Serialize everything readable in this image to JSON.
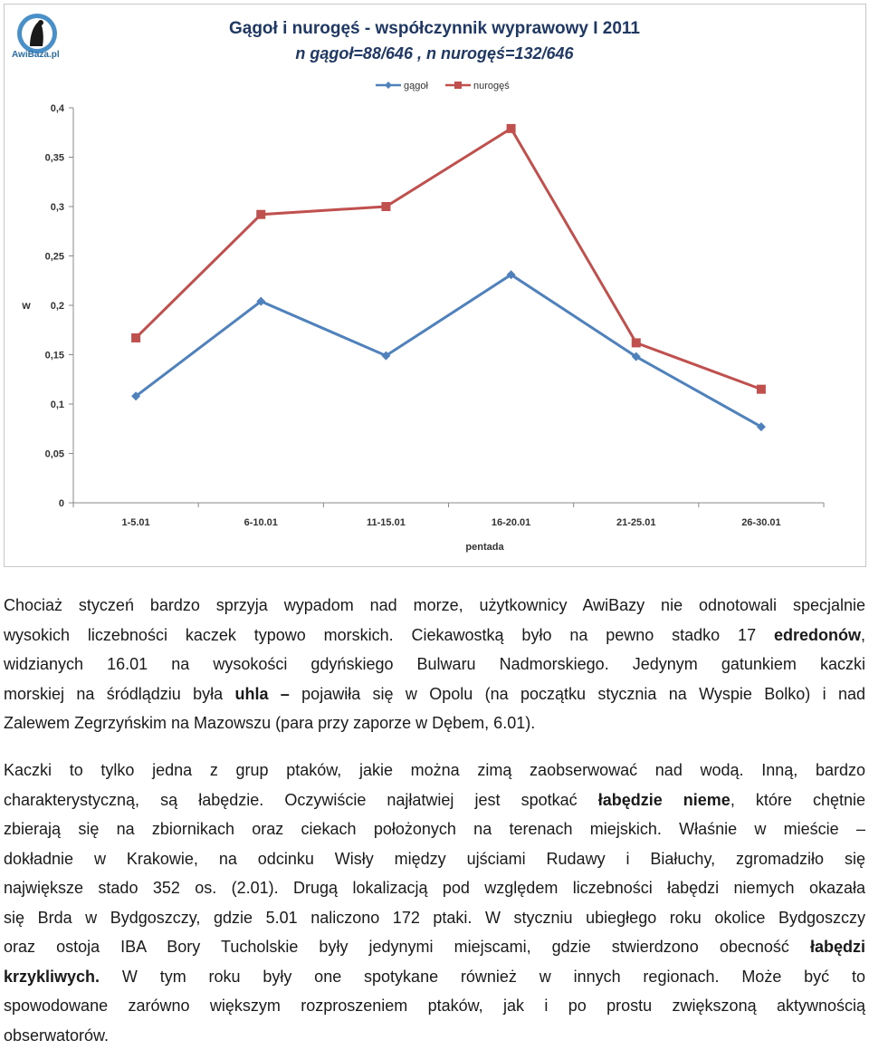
{
  "logo": {
    "text": "AwiBaza.pl"
  },
  "chart_data": {
    "type": "line",
    "title": "Gągoł i nurogęś - współczynnik wyprawowy I 2011",
    "subtitle": "n gągoł=88/646 , n nurogęś=132/646",
    "xlabel": "pentada",
    "ylabel": "w",
    "categories": [
      "1-5.01",
      "6-10.01",
      "11-15.01",
      "16-20.01",
      "21-25.01",
      "26-30.01"
    ],
    "ylim": [
      0,
      0.4
    ],
    "yticks": [
      "0",
      "0,05",
      "0,1",
      "0,15",
      "0,2",
      "0,25",
      "0,3",
      "0,35",
      "0,4"
    ],
    "legend_position": "top",
    "grid": false,
    "series": [
      {
        "name": "gągoł",
        "color": "#4f81bd",
        "marker": "diamond",
        "values": [
          0.108,
          0.204,
          0.149,
          0.231,
          0.148,
          0.077
        ]
      },
      {
        "name": "nurogęś",
        "color": "#c0504d",
        "marker": "square",
        "values": [
          0.167,
          0.292,
          0.3,
          0.379,
          0.162,
          0.115
        ]
      }
    ]
  },
  "para1": [
    [
      {
        "t": "Chociaż styczeń bardzo sprzyja wypadom nad morze, użytkownicy AwiBazy nie odnotowali specjalnie"
      }
    ],
    [
      {
        "t": "wysokich liczebności kaczek typowo morskich. Ciekawostką było na pewno stadko 17 "
      },
      {
        "t": "edredonów",
        "b": true
      },
      {
        "t": ","
      }
    ],
    [
      {
        "t": "widzianych 16.01 na wysokości gdyńskiego Bulwaru Nadmorskiego. Jedynym gatunkiem kaczki"
      }
    ],
    [
      {
        "t": "morskiej na śródlądziu była "
      },
      {
        "t": "uhla – ",
        "b": true
      },
      {
        "t": "pojawiła się w Opolu (na początku stycznia na Wyspie Bolko) i nad"
      }
    ],
    [
      {
        "t": "Zalewem Zegrzyńskim na Mazowszu (para przy zaporze w Dębem, 6.01)."
      }
    ]
  ],
  "para2": [
    [
      {
        "t": "Kaczki to tylko jedna z grup ptaków, jakie można zimą zaobserwować nad wodą. Inną, bardzo"
      }
    ],
    [
      {
        "t": "charakterystyczną, są łabędzie. Oczywiście najłatwiej jest spotkać "
      },
      {
        "t": "łabędzie nieme",
        "b": true
      },
      {
        "t": ", które chętnie"
      }
    ],
    [
      {
        "t": "zbierają się na zbiornikach oraz ciekach położonych na terenach miejskich. Właśnie w mieście –"
      }
    ],
    [
      {
        "t": "dokładnie w Krakowie, na odcinku Wisły między ujściami Rudawy i Białuchy, zgromadziło się"
      }
    ],
    [
      {
        "t": "największe stado 352 os. (2.01). Drugą lokalizacją pod względem liczebności łabędzi niemych okazała"
      }
    ],
    [
      {
        "t": "się Brda w Bydgoszczy, gdzie 5.01 naliczono 172 ptaki. W styczniu ubiegłego roku okolice Bydgoszczy"
      }
    ],
    [
      {
        "t": "oraz ostoja IBA Bory Tucholskie były jedynymi miejscami, gdzie stwierdzono obecność "
      },
      {
        "t": "łabędzi",
        "b": true
      }
    ],
    [
      {
        "t": "krzykliwych.",
        "b": true
      },
      {
        "t": " W tym roku były one spotykane również w innych regionach. Może być to"
      }
    ],
    [
      {
        "t": "spowodowane zarówno większym rozproszeniem ptaków, jak i po prostu zwiększoną aktywnością"
      }
    ],
    [
      {
        "t": "obserwatorów."
      }
    ]
  ]
}
